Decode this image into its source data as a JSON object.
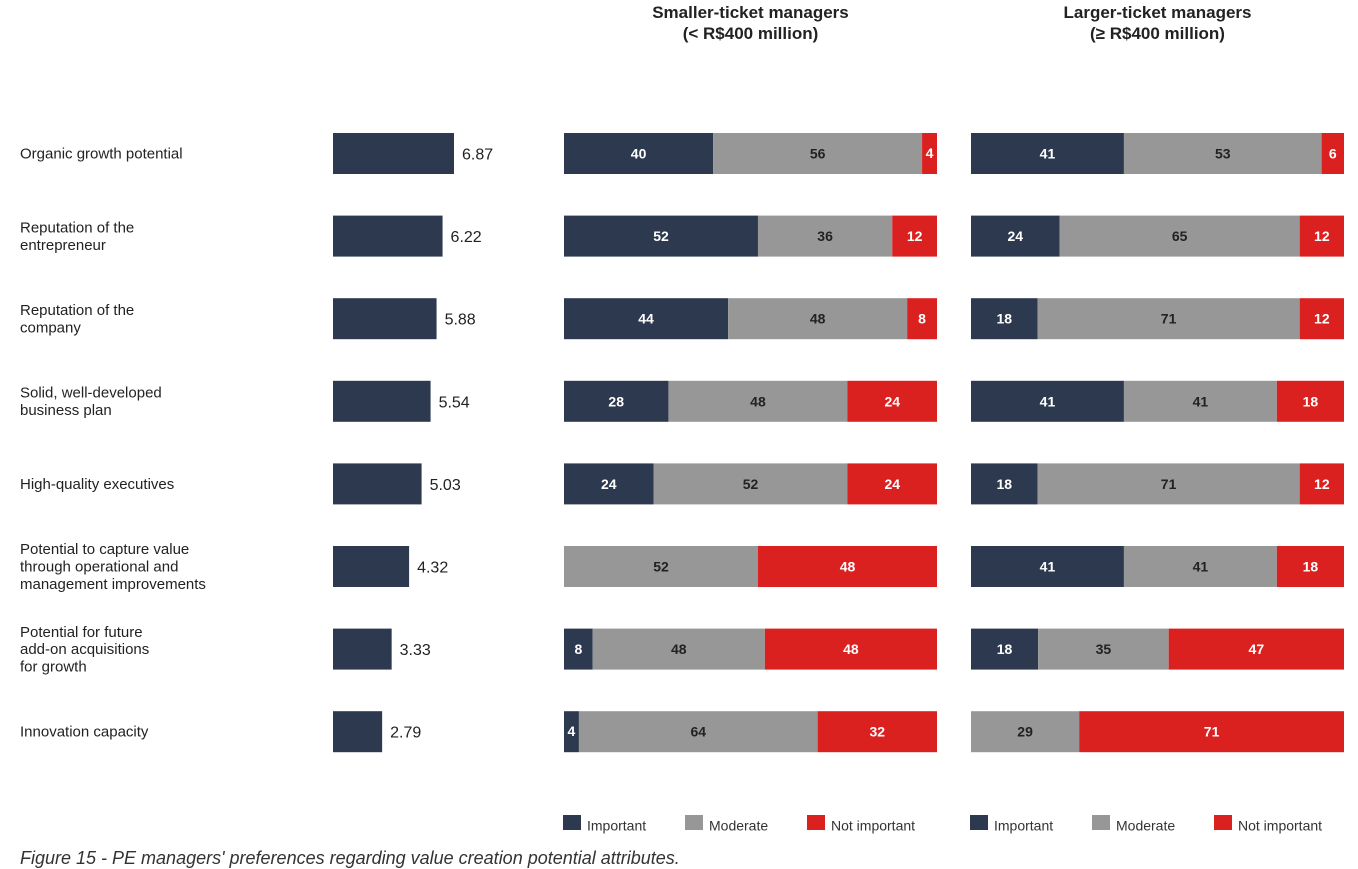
{
  "caption": "Figure 15 - PE managers' preferences regarding value creation potential attributes.",
  "colors": {
    "important": "#2d394f",
    "moderate": "#979797",
    "not_important": "#db2020",
    "score_bar": "#2d394f"
  },
  "chart_data": [
    {
      "type": "bar",
      "orientation": "horizontal",
      "categories": [
        [
          "Organic growth potential"
        ],
        [
          "Reputation of the",
          "entrepreneur"
        ],
        [
          "Reputation of the",
          "company"
        ],
        [
          "Solid, well-developed",
          "business plan"
        ],
        [
          "High-quality executives"
        ],
        [
          "Potential to capture value",
          "through operational and",
          "management improvements"
        ],
        [
          "Potential for future",
          "add-on acquisitions",
          "for growth"
        ],
        [
          "Innovation capacity"
        ]
      ],
      "values": [
        6.87,
        6.22,
        5.88,
        5.54,
        5.03,
        4.32,
        3.33,
        2.79
      ],
      "value_labels": [
        "6.87",
        "6.22",
        "5.88",
        "5.54",
        "5.03",
        "4.32",
        "3.33",
        "2.79"
      ]
    },
    {
      "type": "bar",
      "orientation": "horizontal",
      "stacked": true,
      "title": [
        "Smaller-ticket managers",
        "(< R$400 million)"
      ],
      "series": [
        {
          "name": "Important",
          "values": [
            40,
            52,
            44,
            28,
            24,
            0,
            8,
            4
          ]
        },
        {
          "name": "Moderate",
          "values": [
            56,
            36,
            48,
            48,
            52,
            52,
            48,
            64
          ]
        },
        {
          "name": "Not important",
          "values": [
            4,
            12,
            8,
            24,
            24,
            48,
            48,
            32
          ]
        }
      ],
      "legend": "bottom"
    },
    {
      "type": "bar",
      "orientation": "horizontal",
      "stacked": true,
      "title": [
        "Larger-ticket managers",
        "(≥ R$400 million)"
      ],
      "series": [
        {
          "name": "Important",
          "values": [
            41,
            24,
            18,
            41,
            18,
            41,
            18,
            0
          ]
        },
        {
          "name": "Moderate",
          "values": [
            53,
            65,
            71,
            41,
            71,
            41,
            35,
            29
          ]
        },
        {
          "name": "Not important",
          "values": [
            6,
            12,
            12,
            18,
            12,
            18,
            47,
            71
          ]
        }
      ],
      "legend": "bottom"
    }
  ]
}
